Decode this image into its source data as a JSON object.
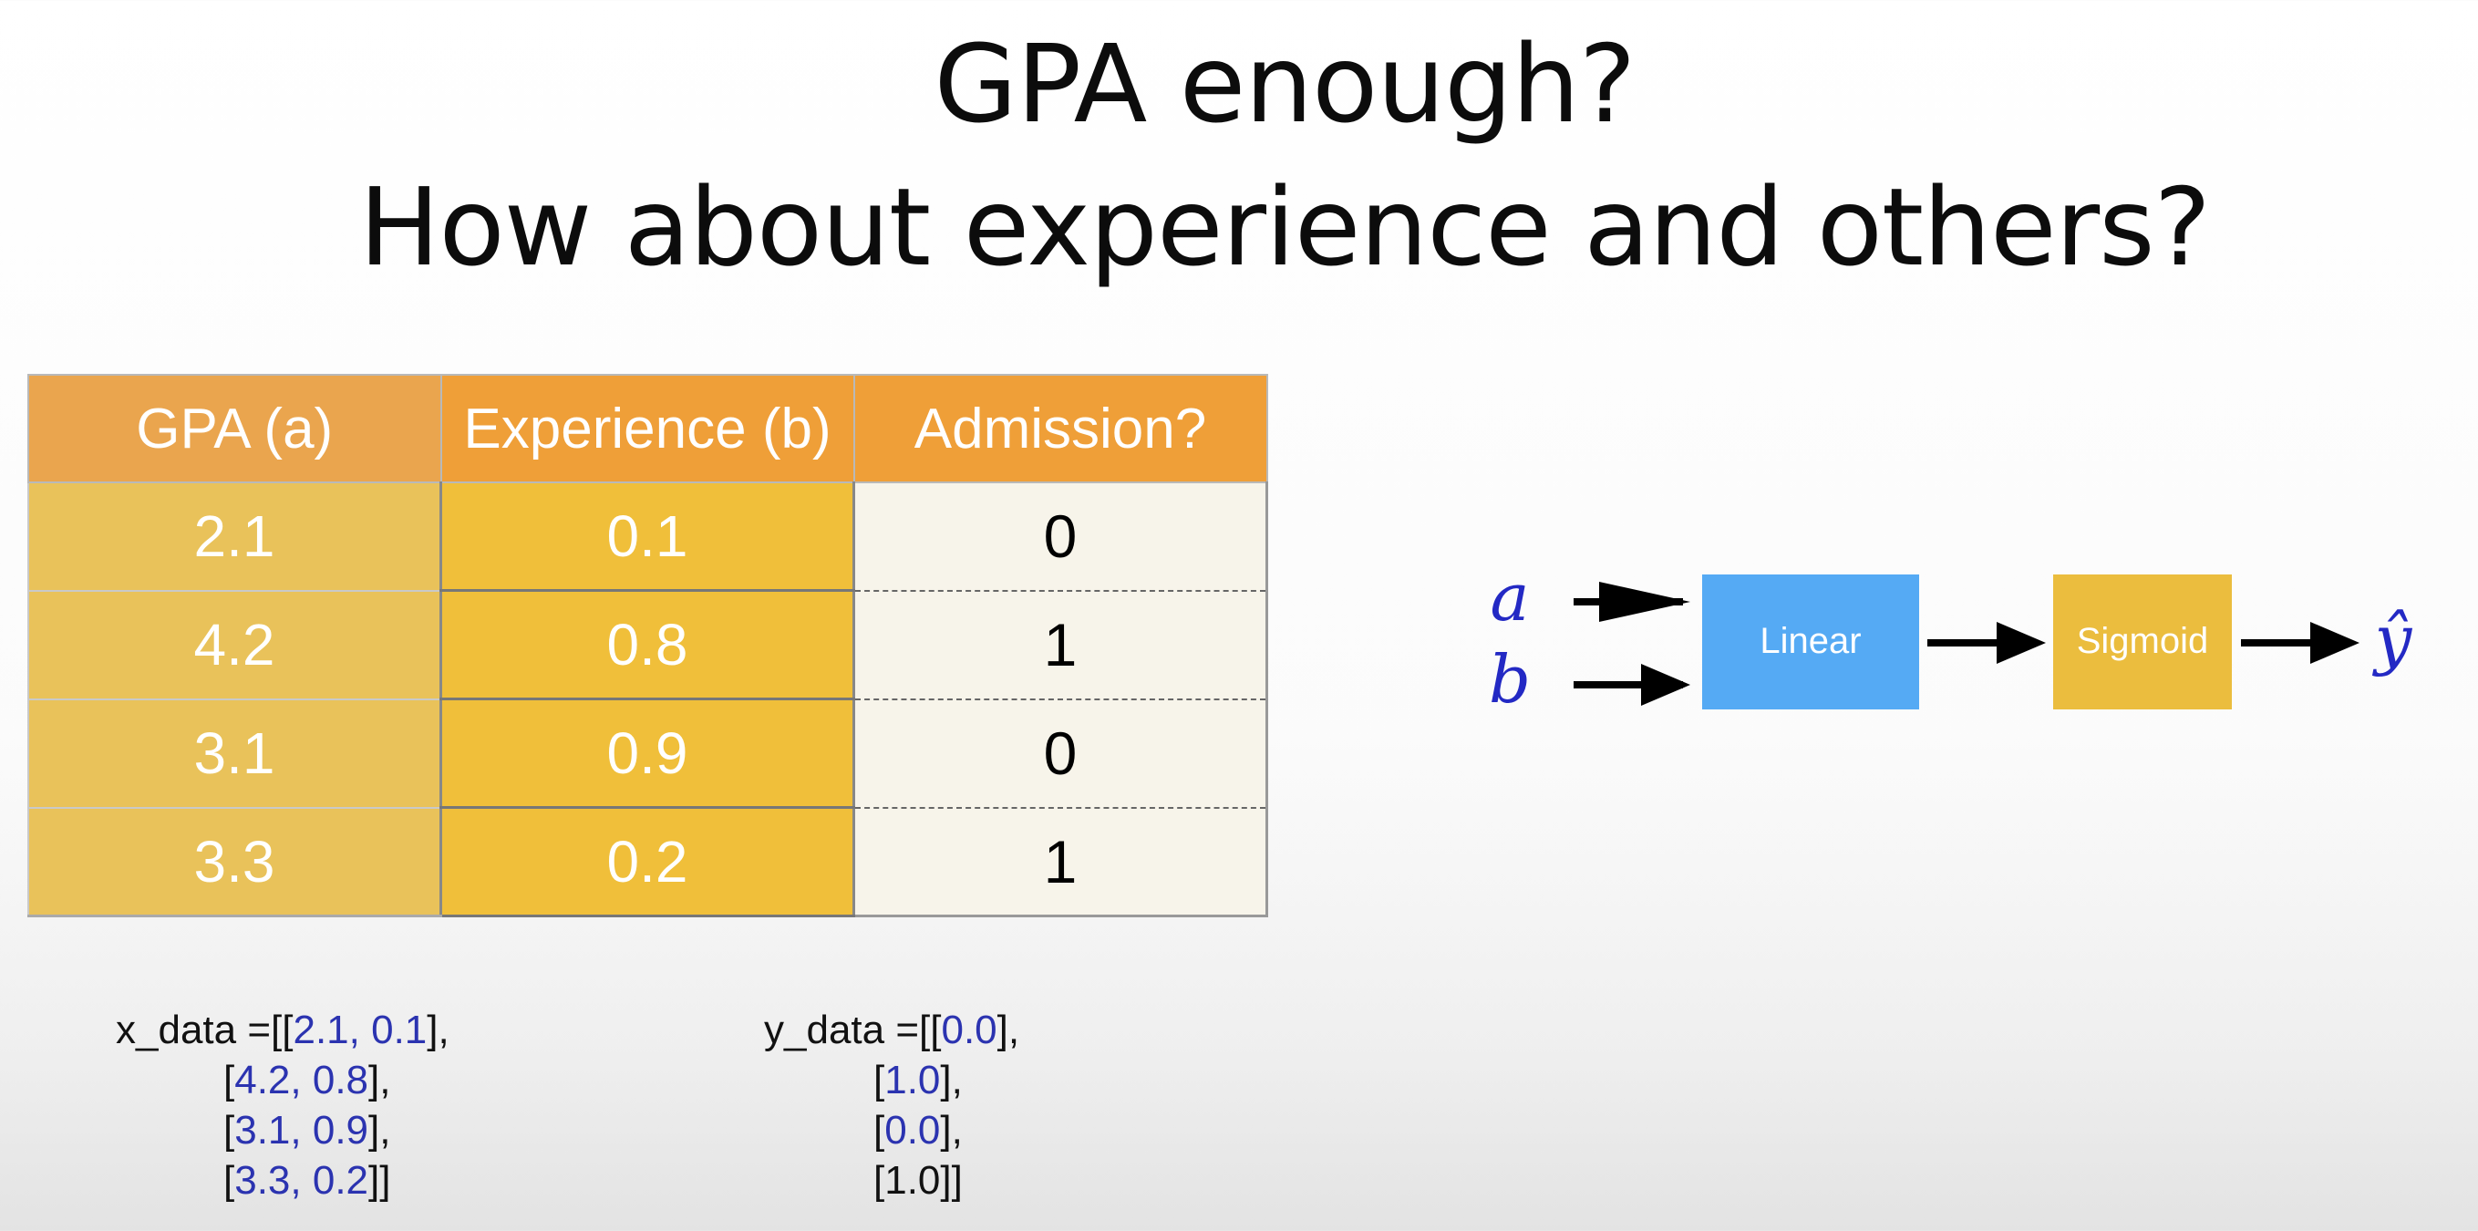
{
  "title": {
    "line1": "GPA enough?",
    "line2": "How about experience and others?"
  },
  "table": {
    "headers": [
      "GPA (a)",
      "Experience (b)",
      "Admission?"
    ],
    "rows": [
      [
        "2.1",
        "0.1",
        "0"
      ],
      [
        "4.2",
        "0.8",
        "1"
      ],
      [
        "3.1",
        "0.9",
        "0"
      ],
      [
        "3.3",
        "0.2",
        "1"
      ]
    ]
  },
  "code": {
    "x_prefix": "x_data =",
    "y_prefix": "y_data =",
    "x_values": [
      "2.1, 0.1",
      "4.2, 0.8",
      "3.1, 0.9",
      "3.3, 0.2"
    ],
    "y_values": [
      "0.0",
      "1.0",
      "0.0",
      "1.0"
    ]
  },
  "diagram": {
    "input_a": "a",
    "input_b": "b",
    "linear_label": "Linear",
    "sigmoid_label": "Sigmoid",
    "output_label": "ŷ",
    "colors": {
      "linear": "#55aaf4",
      "sigmoid": "#ebbd3e",
      "variables": "#2329c4"
    }
  }
}
